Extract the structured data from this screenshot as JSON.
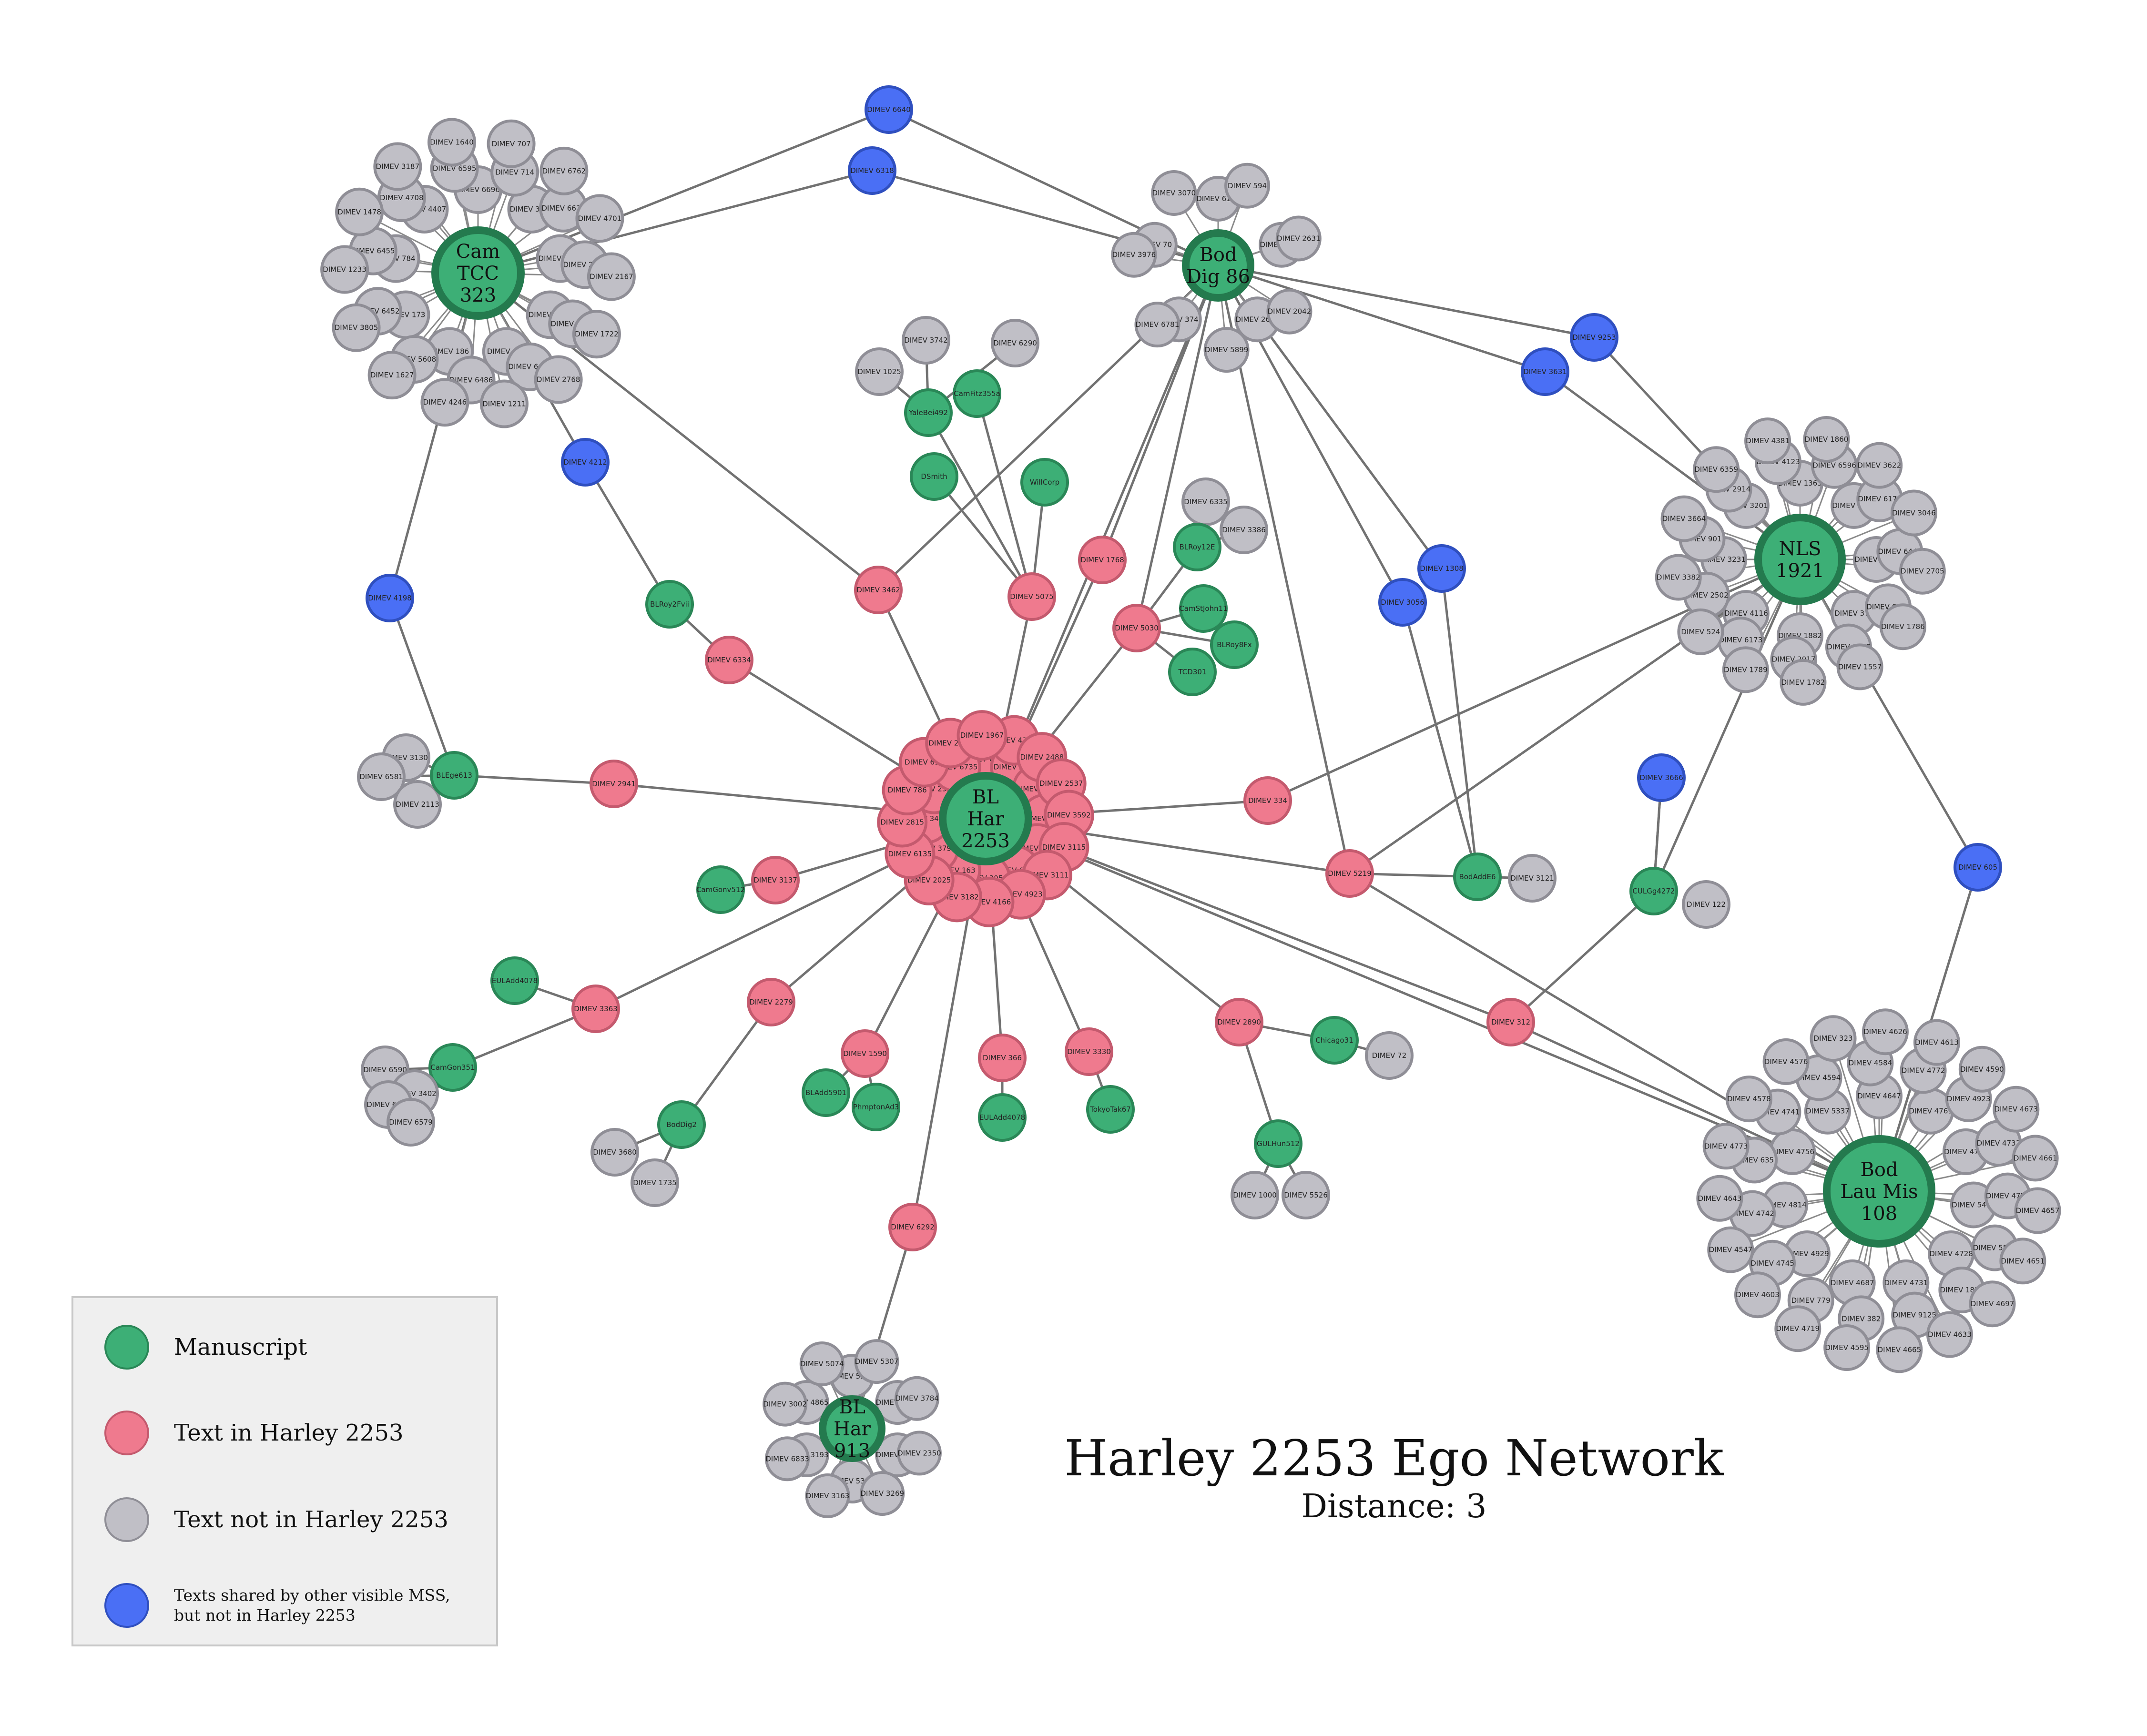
{
  "colors": {
    "manuscript": "#3daf76",
    "text_in": "#ef7a8e",
    "text_not": "#c0bfc6",
    "shared": "#4a6ff5"
  },
  "title": "Harley 2253 Ego Network",
  "subtitle": "Distance: 3",
  "legend": [
    {
      "label": "Manuscript",
      "kind": "manuscript"
    },
    {
      "label": "Text in Harley 2253",
      "kind": "text_in"
    },
    {
      "label": "Text not in Harley 2253",
      "kind": "text_not"
    },
    {
      "label": "Texts shared by other visible MSS,",
      "label2": "but not in Harley 2253",
      "kind": "shared"
    }
  ],
  "hubs": [
    {
      "id": "camtcc",
      "lines": [
        "Cam",
        "TCC",
        "323"
      ],
      "kind": "manuscript"
    },
    {
      "id": "boddig",
      "lines": [
        "Bod",
        "Dig 86"
      ],
      "kind": "manuscript"
    },
    {
      "id": "nls",
      "lines": [
        "NLS",
        "1921"
      ],
      "kind": "manuscript"
    },
    {
      "id": "blhar",
      "lines": [
        "BL",
        "Har",
        "2253"
      ],
      "kind": "manuscript"
    },
    {
      "id": "bodlau",
      "lines": [
        "Bod",
        "Lau Mis",
        "108"
      ],
      "kind": "manuscript"
    },
    {
      "id": "blhar913",
      "lines": [
        "BL",
        "Har",
        "913"
      ],
      "kind": "manuscript"
    }
  ],
  "cluster_labels": {
    "camtcc": [
      "DIMEV 6696",
      "DIMEV 3823",
      "DIMEV 3608",
      "DIMEV 4353",
      "DIMEV 830",
      "DIMEV 186",
      "DIMEV 173",
      "DIMEV 784",
      "DIMEV 4407",
      "DIMEV 714",
      "DIMEV 6627",
      "DIMEV 2315",
      "DIMEV 1944",
      "DIMEV 6612",
      "DIMEV 6486",
      "DIMEV 5608",
      "DIMEV 6452",
      "DIMEV 6455",
      "DIMEV 4708",
      "DIMEV 6595",
      "DIMEV 6762",
      "DIMEV 4701",
      "DIMEV 2167",
      "DIMEV 1722",
      "DIMEV 2768",
      "DIMEV 1211",
      "DIMEV 4246",
      "DIMEV 1627",
      "DIMEV 3805",
      "DIMEV 1233",
      "DIMEV 1478",
      "DIMEV 3187",
      "DIMEV 1640",
      "DIMEV 707"
    ],
    "boddig": [
      "DIMEV 6112",
      "DIMEV 3405",
      "DIMEV 2600",
      "DIMEV 374",
      "DIMEV 70",
      "DIMEV 594",
      "DIMEV 2631",
      "DIMEV 2042",
      "DIMEV 5899",
      "DIMEV 6781",
      "DIMEV 3976",
      "DIMEV 3070"
    ],
    "nls": [
      "DIMEV 1363",
      "DIMEV 1836",
      "DIMEV 1131",
      "DIMEV 379",
      "DIMEV 1882",
      "DIMEV 4116",
      "DIMEV 3231",
      "DIMEV 3201",
      "DIMEV 6596",
      "DIMEV 6172",
      "DIMEV 6440",
      "DIMEV 6677",
      "DIMEV 6466",
      "DIMEV 2017",
      "DIMEV 6173",
      "DIMEV 2502",
      "DIMEV 901",
      "DIMEV 2914",
      "DIMEV 4123",
      "DIMEV 3622",
      "DIMEV 3046",
      "DIMEV 2705",
      "DIMEV 1786",
      "DIMEV 1557",
      "DIMEV 1782",
      "DIMEV 1789",
      "DIMEV 524",
      "DIMEV 3382",
      "DIMEV 3664",
      "DIMEV 6359",
      "DIMEV 4381",
      "DIMEV 1860"
    ],
    "blhar": [
      "DIMEV 6445",
      "DIMEV 2727",
      "DIMEV 3683",
      "DIMEV 4202",
      "DIMEV 3550",
      "DIMEV 6700",
      "DIMEV 3050",
      "DIMEV 163",
      "DIMEV 3797",
      "DIMEV 3490",
      "DIMEV 2324",
      "DIMEV 6735",
      "DIMEV 4372",
      "DIMEV 2488",
      "DIMEV 2537",
      "DIMEV 3592",
      "DIMEV 3115",
      "DIMEV 3111",
      "DIMEV 4923",
      "DIMEV 4166",
      "DIMEV 3182",
      "DIMEV 2025",
      "DIMEV 6135",
      "DIMEV 2815",
      "DIMEV 786",
      "DIMEV 613",
      "DIMEV 2325",
      "DIMEV 1967"
    ],
    "bodlau": [
      "DIMEV 4647",
      "DIMEV 4769",
      "DIMEV 4752",
      "DIMEV 5461",
      "DIMEV 4728",
      "DIMEV 4731",
      "DIMEV 4687",
      "DIMEV 4929",
      "DIMEV 4814",
      "DIMEV 4756",
      "DIMEV 5337",
      "DIMEV 4772",
      "DIMEV 4923",
      "DIMEV 4732",
      "DIMEV 4737",
      "DIMEV 5554",
      "DIMEV 1827",
      "DIMEV 9125",
      "DIMEV 382",
      "DIMEV 779",
      "DIMEV 4745",
      "DIMEV 4742",
      "DIMEV 635",
      "DIMEV 4741",
      "DIMEV 4594",
      "DIMEV 4584",
      "DIMEV 4590",
      "DIMEV 4673",
      "DIMEV 4661",
      "DIMEV 4657",
      "DIMEV 4651",
      "DIMEV 4697",
      "DIMEV 4633",
      "DIMEV 4665",
      "DIMEV 4595",
      "DIMEV 4719",
      "DIMEV 4603",
      "DIMEV 4547",
      "DIMEV 4643",
      "DIMEV 4773",
      "DIMEV 4578",
      "DIMEV 4576",
      "DIMEV 323",
      "DIMEV 4626",
      "DIMEV 4613"
    ],
    "blhar913": [
      "DIMEV 5359",
      "DIMEV 5351",
      "DIMEV 1750",
      "DIMEV 5306",
      "DIMEV 3193",
      "DIMEV 4865",
      "DIMEV 5307",
      "DIMEV 3784",
      "DIMEV 2350",
      "DIMEV 3269",
      "DIMEV 3163",
      "DIMEV 6833",
      "DIMEV 3002",
      "DIMEV 5074"
    ]
  },
  "satellites": [
    {
      "label": "DIMEV 6640",
      "kind": "shared"
    },
    {
      "label": "DIMEV 6318",
      "kind": "shared"
    },
    {
      "label": "DIMEV 9253",
      "kind": "shared"
    },
    {
      "label": "DIMEV 3631",
      "kind": "shared"
    },
    {
      "label": "DIMEV 4212",
      "kind": "shared"
    },
    {
      "label": "DIMEV 4198",
      "kind": "shared"
    },
    {
      "label": "DIMEV 1308",
      "kind": "shared"
    },
    {
      "label": "DIMEV 3056",
      "kind": "shared"
    },
    {
      "label": "DIMEV 3666",
      "kind": "shared"
    },
    {
      "label": "DIMEV 605",
      "kind": "shared"
    },
    {
      "label": "DIMEV 3742",
      "kind": "text_not"
    },
    {
      "label": "DIMEV 6290",
      "kind": "text_not"
    },
    {
      "label": "DIMEV 1025",
      "kind": "text_not"
    },
    {
      "label": "YaleBei492",
      "kind": "manuscript"
    },
    {
      "label": "CamFitz355a",
      "kind": "manuscript"
    },
    {
      "label": "DSmith",
      "kind": "manuscript"
    },
    {
      "label": "WillCorp",
      "kind": "manuscript"
    },
    {
      "label": "DIMEV 6335",
      "kind": "text_not"
    },
    {
      "label": "DIMEV 3386",
      "kind": "text_not"
    },
    {
      "label": "BLRoy12E",
      "kind": "manuscript"
    },
    {
      "label": "CamStJohn11",
      "kind": "manuscript"
    },
    {
      "label": "BLRoy8Fx",
      "kind": "manuscript"
    },
    {
      "label": "TCD301",
      "kind": "manuscript"
    },
    {
      "label": "DIMEV 5030",
      "kind": "text_in"
    },
    {
      "label": "DIMEV 1768",
      "kind": "text_in"
    },
    {
      "label": "DIMEV 5075",
      "kind": "text_in"
    },
    {
      "label": "DIMEV 3462",
      "kind": "text_in"
    },
    {
      "label": "BLRoy2Fvii",
      "kind": "manuscript"
    },
    {
      "label": "DIMEV 6334",
      "kind": "text_in"
    },
    {
      "label": "DIMEV 3130",
      "kind": "text_not"
    },
    {
      "label": "DIMEV 6581",
      "kind": "text_not"
    },
    {
      "label": "DIMEV 2113",
      "kind": "text_not"
    },
    {
      "label": "BLEge613",
      "kind": "manuscript"
    },
    {
      "label": "DIMEV 2941",
      "kind": "text_in"
    },
    {
      "label": "DIMEV 334",
      "kind": "text_in"
    },
    {
      "label": "DIMEV 5219",
      "kind": "text_in"
    },
    {
      "label": "BodAddE6",
      "kind": "manuscript"
    },
    {
      "label": "DIMEV 3121",
      "kind": "text_not"
    },
    {
      "label": "CULGg4272",
      "kind": "manuscript"
    },
    {
      "label": "DIMEV 122",
      "kind": "text_not"
    },
    {
      "label": "DIMEV 312",
      "kind": "text_in"
    },
    {
      "label": "CamGonv512",
      "kind": "manuscript"
    },
    {
      "label": "DIMEV 3137",
      "kind": "text_in"
    },
    {
      "label": "EULAdd4078",
      "kind": "manuscript"
    },
    {
      "label": "DIMEV 3363",
      "kind": "text_in"
    },
    {
      "label": "CamGon351",
      "kind": "manuscript"
    },
    {
      "label": "DIMEV 6590",
      "kind": "text_not"
    },
    {
      "label": "DIMEV 3402",
      "kind": "text_not"
    },
    {
      "label": "DIMEV 6136",
      "kind": "text_not"
    },
    {
      "label": "DIMEV 6579",
      "kind": "text_not"
    },
    {
      "label": "DIMEV 2279",
      "kind": "text_in"
    },
    {
      "label": "BodDig2",
      "kind": "manuscript"
    },
    {
      "label": "DIMEV 3680",
      "kind": "text_not"
    },
    {
      "label": "DIMEV 1735",
      "kind": "text_not"
    },
    {
      "label": "DIMEV 1590",
      "kind": "text_in"
    },
    {
      "label": "BLAdd5901",
      "kind": "manuscript"
    },
    {
      "label": "PhmptonAd3",
      "kind": "manuscript"
    },
    {
      "label": "DIMEV 366",
      "kind": "text_in"
    },
    {
      "label": "EULAdd4078",
      "kind": "manuscript"
    },
    {
      "label": "DIMEV 3330",
      "kind": "text_in"
    },
    {
      "label": "TokyoTak67",
      "kind": "manuscript"
    },
    {
      "label": "DIMEV 2890",
      "kind": "text_in"
    },
    {
      "label": "Chicago31",
      "kind": "manuscript"
    },
    {
      "label": "DIMEV 72",
      "kind": "text_not"
    },
    {
      "label": "GULHun512",
      "kind": "manuscript"
    },
    {
      "label": "DIMEV 1000",
      "kind": "text_not"
    },
    {
      "label": "DIMEV 5526",
      "kind": "text_not"
    },
    {
      "label": "DIMEV 6292",
      "kind": "text_in"
    }
  ]
}
